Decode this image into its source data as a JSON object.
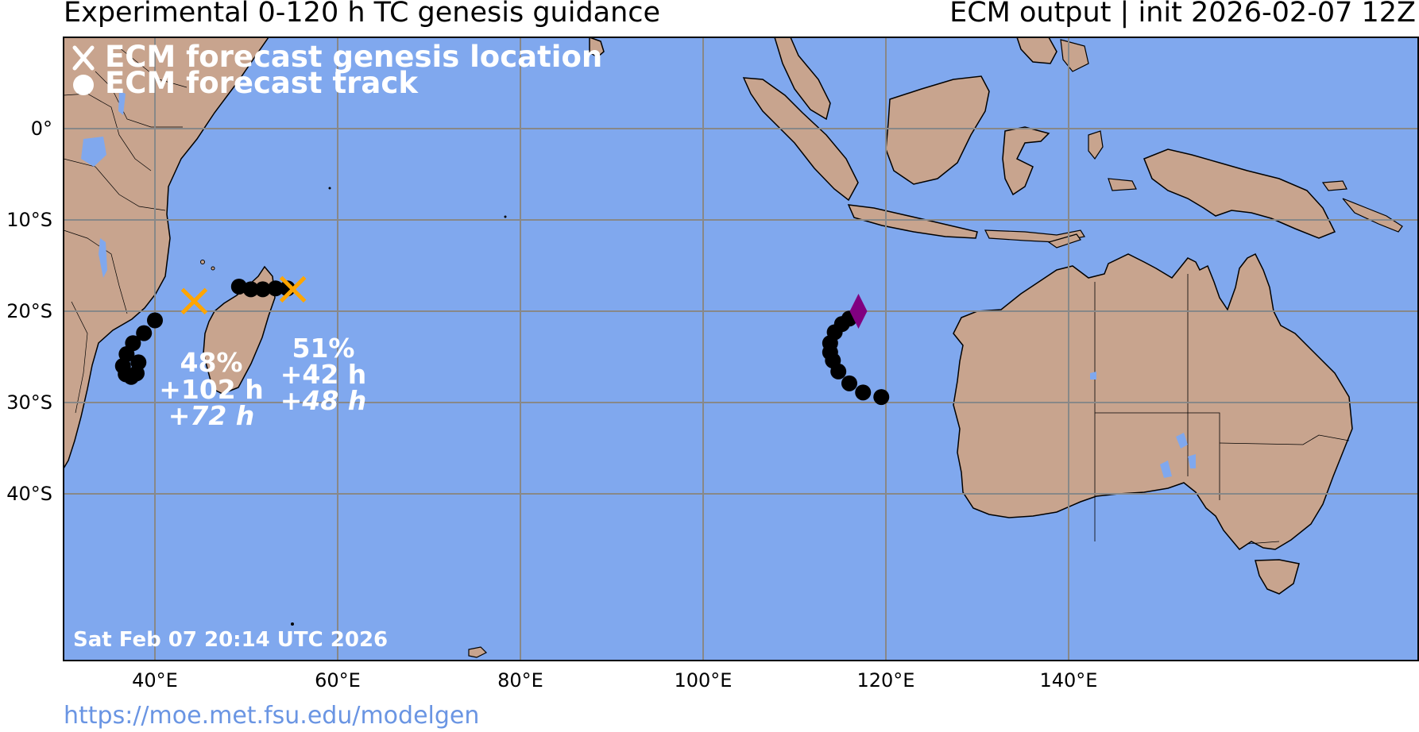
{
  "header": {
    "title_left": "Experimental 0-120 h TC genesis guidance",
    "title_right": "ECM output | init 2026-02-07 12Z"
  },
  "legend": {
    "genesis_label": "ECM forecast genesis location",
    "track_label": "ECM forecast track"
  },
  "map": {
    "lat_ticks": [
      "0°",
      "10°S",
      "20°S",
      "30°S",
      "40°S"
    ],
    "lon_ticks": [
      "40°E",
      "60°E",
      "80°E",
      "100°E",
      "120°E",
      "140°E"
    ],
    "ocean_color": "#80a8ee",
    "land_color": "#c8a48e",
    "grid_color": "#888888",
    "timestamp": "Sat Feb 07 20:14 UTC 2026"
  },
  "systems": [
    {
      "name": "system-west",
      "genesis_marker": "x-mark",
      "marker_color": "#ffa500",
      "probability": "48%",
      "lead_time": "+102 h",
      "genesis_time": "+72 h",
      "genesis": {
        "lon": 44.3,
        "lat": -18.9
      },
      "track": [
        [
          40.0,
          -21.0
        ],
        [
          38.8,
          -22.4
        ],
        [
          37.6,
          -23.5
        ],
        [
          36.9,
          -24.7
        ],
        [
          36.5,
          -26.0
        ],
        [
          36.8,
          -26.9
        ],
        [
          37.4,
          -27.2
        ],
        [
          38.0,
          -26.8
        ],
        [
          38.2,
          -25.6
        ]
      ]
    },
    {
      "name": "system-central",
      "genesis_marker": "x-mark",
      "marker_color": "#ffa500",
      "probability": "51%",
      "lead_time": "+42 h",
      "genesis_time": "+48 h",
      "genesis": {
        "lon": 55.1,
        "lat": -17.6
      },
      "track": [
        [
          54.5,
          -17.5
        ],
        [
          53.2,
          -17.5
        ],
        [
          51.8,
          -17.6
        ],
        [
          50.5,
          -17.6
        ],
        [
          49.2,
          -17.3
        ]
      ]
    },
    {
      "name": "system-east",
      "genesis_marker": "diamond",
      "marker_color": "#800080",
      "genesis": {
        "lon": 117.0,
        "lat": -20.0
      },
      "track": [
        [
          116.0,
          -20.8
        ],
        [
          115.2,
          -21.4
        ],
        [
          114.4,
          -22.3
        ],
        [
          113.9,
          -23.5
        ],
        [
          113.9,
          -24.5
        ],
        [
          114.2,
          -25.4
        ],
        [
          114.8,
          -26.6
        ],
        [
          116.0,
          -27.9
        ],
        [
          117.5,
          -28.9
        ],
        [
          119.5,
          -29.4
        ]
      ]
    }
  ]
}
